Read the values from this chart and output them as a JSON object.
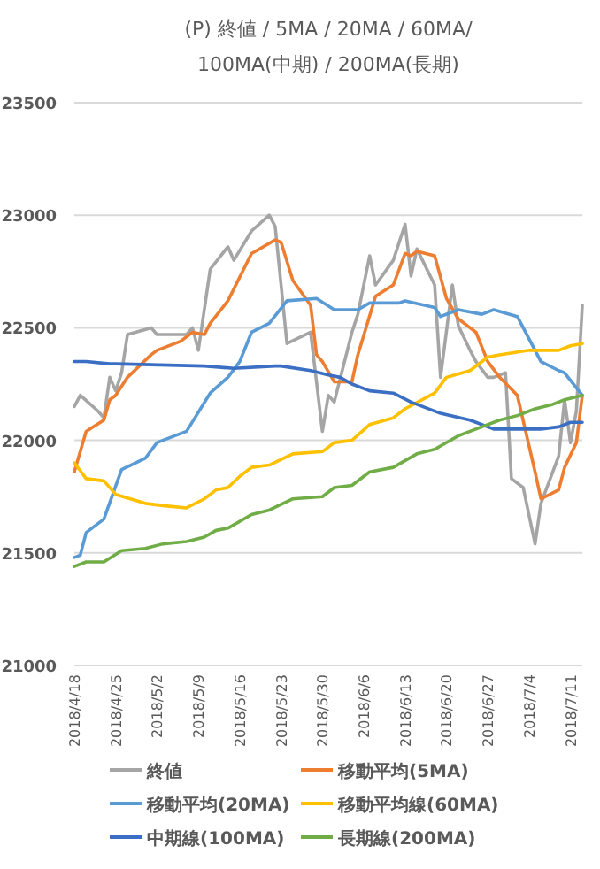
{
  "chart_data": {
    "type": "line",
    "title": "(P) 終値 / 5MA / 20MA / 60MA/ 100MA(中期) / 200MA(長期)",
    "xlim": [
      "2018-04-18",
      "2018-07-13"
    ],
    "xticks": [
      {
        "value": "2018-04-18",
        "label": "2018/4/18"
      },
      {
        "value": "2018-04-25",
        "label": "2018/4/25"
      },
      {
        "value": "2018-05-02",
        "label": "2018/5/2"
      },
      {
        "value": "2018-05-09",
        "label": "2018/5/9"
      },
      {
        "value": "2018-05-16",
        "label": "2018/5/16"
      },
      {
        "value": "2018-05-23",
        "label": "2018/5/23"
      },
      {
        "value": "2018-05-30",
        "label": "2018/5/30"
      },
      {
        "value": "2018-06-06",
        "label": "2018/6/6"
      },
      {
        "value": "2018-06-13",
        "label": "2018/6/13"
      },
      {
        "value": "2018-06-20",
        "label": "2018/6/20"
      },
      {
        "value": "2018-06-27",
        "label": "2018/6/27"
      },
      {
        "value": "2018-07-04",
        "label": "2018/7/4"
      },
      {
        "value": "2018-07-11",
        "label": "2018/7/11"
      }
    ],
    "ylim": [
      21000,
      23500
    ],
    "yticks": [
      21000,
      21500,
      22000,
      22500,
      23000,
      23500
    ],
    "grid": "y",
    "legend": "bottom",
    "series": [
      {
        "name": "終値",
        "color": "#a5a5a5",
        "x": [
          "2018-04-18",
          "2018-04-19",
          "2018-04-22",
          "2018-04-23",
          "2018-04-24",
          "2018-04-25",
          "2018-04-26",
          "2018-04-27",
          "2018-05-01",
          "2018-05-02",
          "2018-05-07",
          "2018-05-08",
          "2018-05-09",
          "2018-05-11",
          "2018-05-14",
          "2018-05-15",
          "2018-05-18",
          "2018-05-21",
          "2018-05-22",
          "2018-05-24",
          "2018-05-28",
          "2018-05-30",
          "2018-05-31",
          "2018-06-01",
          "2018-06-04",
          "2018-06-05",
          "2018-06-07",
          "2018-06-08",
          "2018-06-11",
          "2018-06-13",
          "2018-06-14",
          "2018-06-15",
          "2018-06-18",
          "2018-06-19",
          "2018-06-21",
          "2018-06-22",
          "2018-06-24",
          "2018-06-25",
          "2018-06-27",
          "2018-06-28",
          "2018-06-30",
          "2018-07-01",
          "2018-07-03",
          "2018-07-05",
          "2018-07-06",
          "2018-07-09",
          "2018-07-10",
          "2018-07-11",
          "2018-07-12",
          "2018-07-13"
        ],
        "values": [
          22150,
          22200,
          22130,
          22100,
          22280,
          22220,
          22300,
          22470,
          22500,
          22470,
          22470,
          22500,
          22400,
          22760,
          22860,
          22800,
          22930,
          23000,
          22950,
          22430,
          22480,
          22040,
          22200,
          22170,
          22480,
          22560,
          22820,
          22690,
          22800,
          22960,
          22730,
          22850,
          22690,
          22280,
          22690,
          22510,
          22400,
          22350,
          22280,
          22280,
          22300,
          21830,
          21790,
          21540,
          21720,
          21930,
          22180,
          21990,
          22130,
          22600
        ]
      },
      {
        "name": "移動平均(5MA)",
        "color": "#ed7d31",
        "x": [
          "2018-04-18",
          "2018-04-20",
          "2018-04-23",
          "2018-04-24",
          "2018-04-25",
          "2018-04-27",
          "2018-05-01",
          "2018-05-02",
          "2018-05-06",
          "2018-05-08",
          "2018-05-10",
          "2018-05-11",
          "2018-05-14",
          "2018-05-18",
          "2018-05-22",
          "2018-05-23",
          "2018-05-25",
          "2018-05-28",
          "2018-05-29",
          "2018-05-30",
          "2018-06-01",
          "2018-06-04",
          "2018-06-05",
          "2018-06-08",
          "2018-06-11",
          "2018-06-13",
          "2018-06-14",
          "2018-06-15",
          "2018-06-18",
          "2018-06-20",
          "2018-06-22",
          "2018-06-24",
          "2018-06-25",
          "2018-06-27",
          "2018-06-29",
          "2018-07-02",
          "2018-07-05",
          "2018-07-06",
          "2018-07-09",
          "2018-07-10",
          "2018-07-12",
          "2018-07-13"
        ],
        "values": [
          21860,
          22040,
          22090,
          22180,
          22200,
          22280,
          22380,
          22400,
          22440,
          22480,
          22470,
          22520,
          22620,
          22830,
          22890,
          22880,
          22710,
          22600,
          22380,
          22350,
          22260,
          22260,
          22380,
          22640,
          22690,
          22830,
          22820,
          22840,
          22820,
          22630,
          22540,
          22500,
          22480,
          22350,
          22280,
          22200,
          21860,
          21740,
          21780,
          21880,
          21990,
          22200
        ]
      },
      {
        "name": "移動平均(20MA)",
        "color": "#5b9bd5",
        "x": [
          "2018-04-18",
          "2018-04-19",
          "2018-04-20",
          "2018-04-23",
          "2018-04-26",
          "2018-04-30",
          "2018-05-02",
          "2018-05-07",
          "2018-05-11",
          "2018-05-14",
          "2018-05-16",
          "2018-05-18",
          "2018-05-21",
          "2018-05-24",
          "2018-05-29",
          "2018-06-01",
          "2018-06-05",
          "2018-06-07",
          "2018-06-12",
          "2018-06-13",
          "2018-06-18",
          "2018-06-19",
          "2018-06-22",
          "2018-06-26",
          "2018-06-28",
          "2018-07-02",
          "2018-07-06",
          "2018-07-09",
          "2018-07-10",
          "2018-07-13"
        ],
        "values": [
          21480,
          21490,
          21590,
          21650,
          21870,
          21920,
          21990,
          22040,
          22210,
          22280,
          22350,
          22480,
          22520,
          22620,
          22630,
          22580,
          22580,
          22610,
          22610,
          22620,
          22590,
          22550,
          22580,
          22560,
          22580,
          22550,
          22350,
          22310,
          22300,
          22200
        ]
      },
      {
        "name": "移動平均線(60MA)",
        "color": "#ffc000",
        "x": [
          "2018-04-18",
          "2018-04-20",
          "2018-04-23",
          "2018-04-25",
          "2018-04-30",
          "2018-05-03",
          "2018-05-07",
          "2018-05-10",
          "2018-05-12",
          "2018-05-14",
          "2018-05-16",
          "2018-05-18",
          "2018-05-21",
          "2018-05-25",
          "2018-05-30",
          "2018-06-01",
          "2018-06-04",
          "2018-06-07",
          "2018-06-11",
          "2018-06-13",
          "2018-06-18",
          "2018-06-20",
          "2018-06-24",
          "2018-06-27",
          "2018-06-29",
          "2018-07-04",
          "2018-07-09",
          "2018-07-11",
          "2018-07-13"
        ],
        "values": [
          21900,
          21830,
          21820,
          21760,
          21720,
          21710,
          21700,
          21740,
          21780,
          21790,
          21840,
          21880,
          21890,
          21940,
          21950,
          21990,
          22000,
          22070,
          22100,
          22140,
          22210,
          22280,
          22310,
          22370,
          22380,
          22400,
          22400,
          22420,
          22430
        ]
      },
      {
        "name": "中期線(100MA)",
        "color": "#3a6fc4",
        "x": [
          "2018-04-18",
          "2018-04-20",
          "2018-04-24",
          "2018-04-25",
          "2018-05-10",
          "2018-05-15",
          "2018-05-22",
          "2018-05-23",
          "2018-05-28",
          "2018-05-31",
          "2018-06-02",
          "2018-06-04",
          "2018-06-07",
          "2018-06-11",
          "2018-06-14",
          "2018-06-19",
          "2018-06-24",
          "2018-06-28",
          "2018-07-02",
          "2018-07-06",
          "2018-07-09",
          "2018-07-11",
          "2018-07-13"
        ],
        "values": [
          22350,
          22350,
          22340,
          22340,
          22330,
          22320,
          22330,
          22330,
          22310,
          22290,
          22280,
          22250,
          22220,
          22210,
          22170,
          22120,
          22090,
          22050,
          22050,
          22050,
          22060,
          22080,
          22080
        ]
      },
      {
        "name": "長期線(200MA)",
        "color": "#70ad47",
        "x": [
          "2018-04-18",
          "2018-04-20",
          "2018-04-23",
          "2018-04-26",
          "2018-04-30",
          "2018-05-03",
          "2018-05-07",
          "2018-05-10",
          "2018-05-12",
          "2018-05-14",
          "2018-05-18",
          "2018-05-21",
          "2018-05-25",
          "2018-05-30",
          "2018-06-01",
          "2018-06-04",
          "2018-06-07",
          "2018-06-11",
          "2018-06-15",
          "2018-06-18",
          "2018-06-22",
          "2018-06-24",
          "2018-06-29",
          "2018-07-02",
          "2018-07-05",
          "2018-07-08",
          "2018-07-10",
          "2018-07-13"
        ],
        "values": [
          21440,
          21460,
          21460,
          21510,
          21520,
          21540,
          21550,
          21570,
          21600,
          21610,
          21670,
          21690,
          21740,
          21750,
          21790,
          21800,
          21860,
          21880,
          21940,
          21960,
          22020,
          22040,
          22090,
          22110,
          22140,
          22160,
          22180,
          22200
        ]
      }
    ]
  }
}
